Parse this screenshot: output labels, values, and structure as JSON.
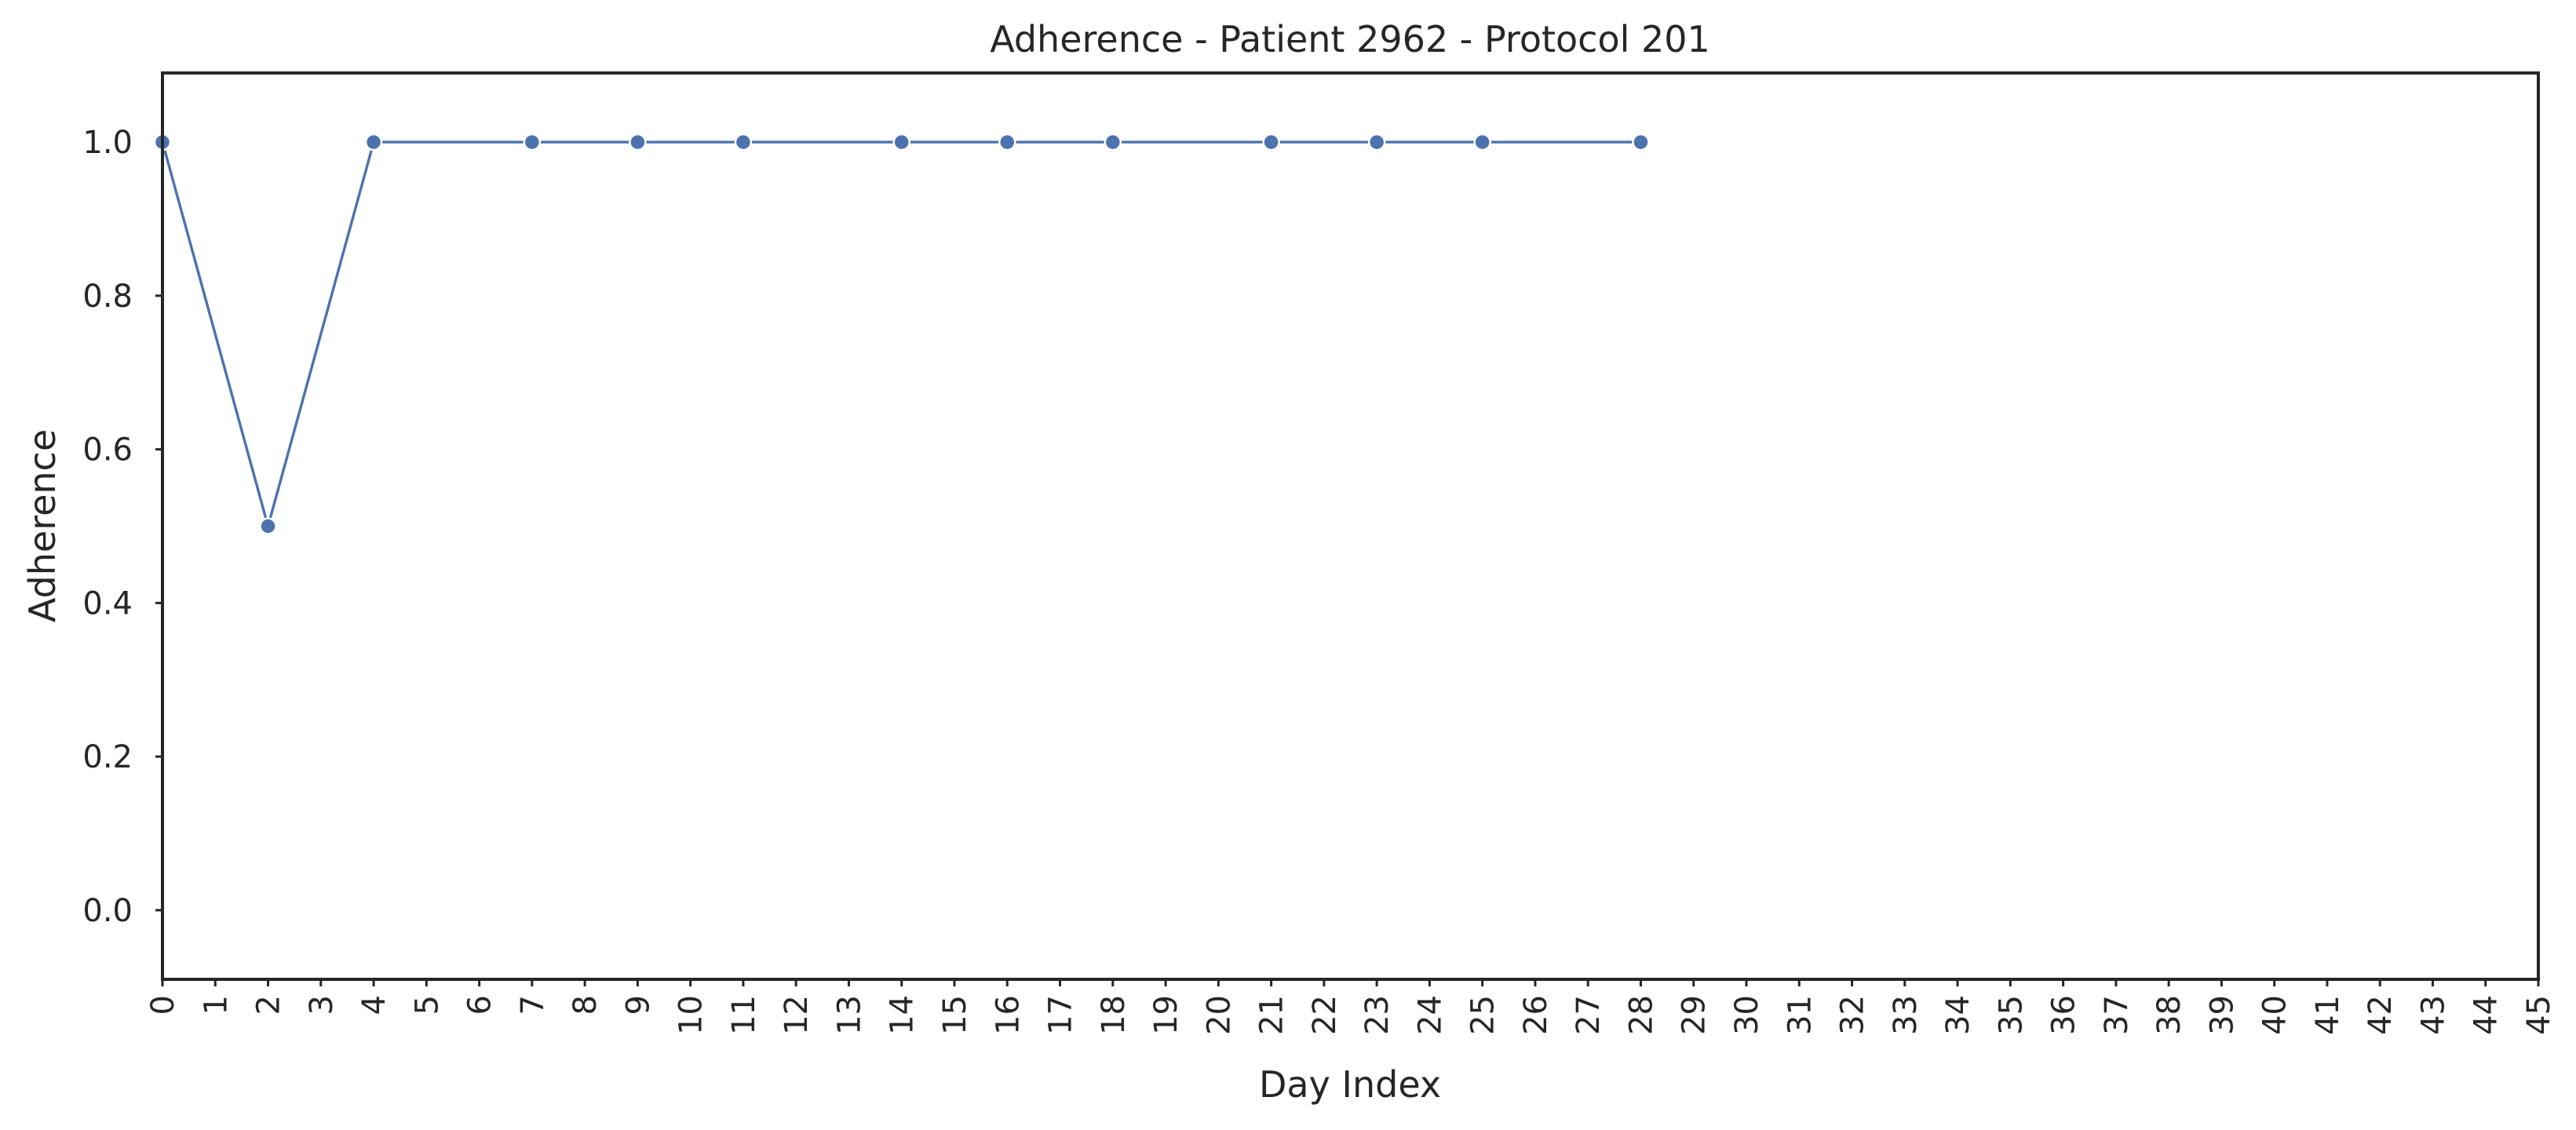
{
  "chart_data": {
    "type": "line",
    "title": "Adherence - Patient 2962 - Protocol 201",
    "xlabel": "Day Index",
    "ylabel": "Adherence",
    "xlim": [
      0,
      45
    ],
    "ylim": [
      -0.09,
      1.09
    ],
    "x_ticks": [
      0,
      1,
      2,
      3,
      4,
      5,
      6,
      7,
      8,
      9,
      10,
      11,
      12,
      13,
      14,
      15,
      16,
      17,
      18,
      19,
      20,
      21,
      22,
      23,
      24,
      25,
      26,
      27,
      28,
      29,
      30,
      31,
      32,
      33,
      34,
      35,
      36,
      37,
      38,
      39,
      40,
      41,
      42,
      43,
      44,
      45
    ],
    "y_ticks": [
      0.0,
      0.2,
      0.4,
      0.6,
      0.8,
      1.0
    ],
    "grid": false,
    "legend": "none",
    "series": [
      {
        "color": "#4c72b0",
        "x": [
          0,
          2,
          4,
          7,
          9,
          11,
          14,
          16,
          18,
          21,
          23,
          25,
          28
        ],
        "y": [
          1.0,
          0.5,
          1.0,
          1.0,
          1.0,
          1.0,
          1.0,
          1.0,
          1.0,
          1.0,
          1.0,
          1.0,
          1.0
        ]
      }
    ]
  }
}
